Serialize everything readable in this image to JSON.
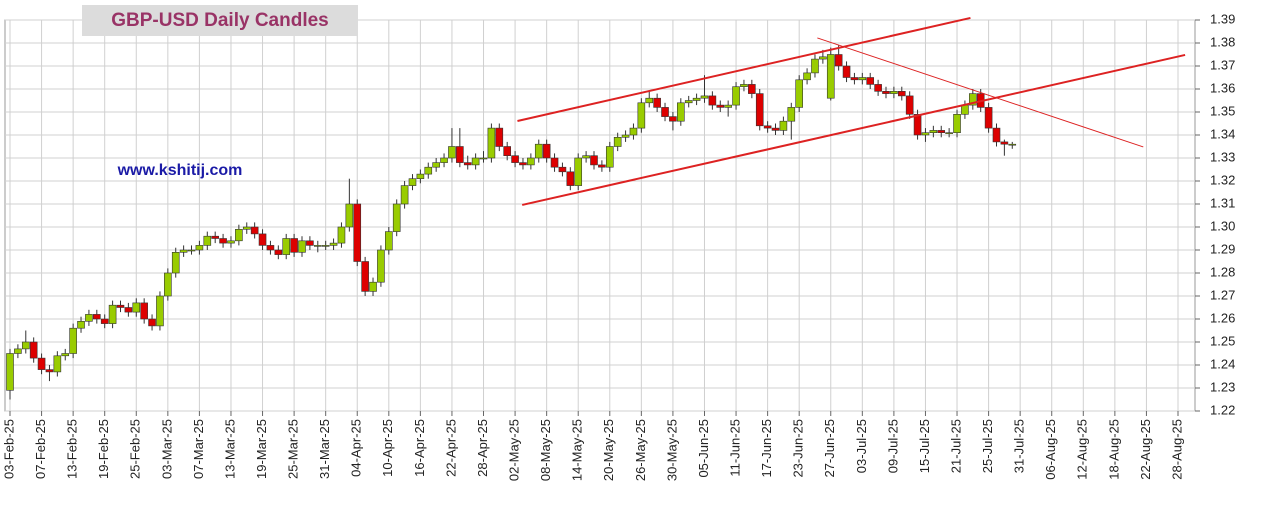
{
  "chart_data": {
    "type": "candlestick",
    "title": "GBP-USD Daily Candles",
    "watermark": "www.kshitij.com",
    "up_color": "#99cc00",
    "down_color": "#dd0000",
    "grid": true,
    "ylim": [
      1.22,
      1.39
    ],
    "yticks": [
      1.22,
      1.23,
      1.24,
      1.25,
      1.26,
      1.27,
      1.28,
      1.29,
      {
        "value": 1.3,
        "label": "1.30"
      },
      1.31,
      1.32,
      1.33,
      1.34,
      1.35,
      1.36,
      1.37,
      1.38,
      1.39
    ],
    "categories": [
      "03-Feb-25",
      null,
      null,
      null,
      "07-Feb-25",
      null,
      null,
      null,
      "13-Feb-25",
      null,
      null,
      null,
      "19-Feb-25",
      null,
      null,
      null,
      "25-Feb-25",
      null,
      null,
      null,
      "03-Mar-25",
      null,
      null,
      null,
      "07-Mar-25",
      null,
      null,
      null,
      "13-Mar-25",
      null,
      null,
      null,
      "19-Mar-25",
      null,
      null,
      null,
      "25-Mar-25",
      null,
      null,
      null,
      "31-Mar-25",
      null,
      null,
      null,
      "04-Apr-25",
      null,
      null,
      null,
      "10-Apr-25",
      null,
      null,
      null,
      "16-Apr-25",
      null,
      null,
      null,
      "22-Apr-25",
      null,
      null,
      null,
      "28-Apr-25",
      null,
      null,
      null,
      "02-May-25",
      null,
      null,
      null,
      "08-May-25",
      null,
      null,
      null,
      "14-May-25",
      null,
      null,
      null,
      "20-May-25",
      null,
      null,
      null,
      "26-May-25",
      null,
      null,
      null,
      "30-May-25",
      null,
      null,
      null,
      "05-Jun-25",
      null,
      null,
      null,
      "11-Jun-25",
      null,
      null,
      null,
      "17-Jun-25",
      null,
      null,
      null,
      "23-Jun-25",
      null,
      null,
      null,
      "27-Jun-25",
      null,
      null,
      null,
      "03-Jul-25",
      null,
      null,
      null,
      "09-Jul-25",
      null,
      null,
      null,
      "15-Jul-25",
      null,
      null,
      null,
      "21-Jul-25",
      null,
      null,
      null,
      "25-Jul-25",
      null,
      null,
      null,
      "31-Jul-25",
      null,
      null,
      null,
      "06-Aug-25",
      null,
      null,
      null,
      "12-Aug-25",
      null,
      null,
      null,
      "18-Aug-25",
      null,
      null,
      null,
      "22-Aug-25",
      null,
      null,
      null,
      "28-Aug-25"
    ],
    "ohlc": [
      [
        1.229,
        1.247,
        1.225,
        1.245
      ],
      [
        1.245,
        1.249,
        1.243,
        1.247
      ],
      [
        1.247,
        1.255,
        1.245,
        1.25
      ],
      [
        1.25,
        1.252,
        1.241,
        1.243
      ],
      [
        1.243,
        1.245,
        1.236,
        1.238
      ],
      [
        1.238,
        1.24,
        1.233,
        1.237
      ],
      [
        1.237,
        1.246,
        1.235,
        1.244
      ],
      [
        1.244,
        1.247,
        1.242,
        1.245
      ],
      [
        1.245,
        1.258,
        1.243,
        1.256
      ],
      [
        1.256,
        1.261,
        1.254,
        1.259
      ],
      [
        1.259,
        1.264,
        1.257,
        1.262
      ],
      [
        1.262,
        1.264,
        1.258,
        1.26
      ],
      [
        1.26,
        1.262,
        1.256,
        1.258
      ],
      [
        1.258,
        1.268,
        1.256,
        1.266
      ],
      [
        1.266,
        1.268,
        1.263,
        1.265
      ],
      [
        1.265,
        1.267,
        1.261,
        1.263
      ],
      [
        1.263,
        1.269,
        1.261,
        1.267
      ],
      [
        1.267,
        1.269,
        1.258,
        1.26
      ],
      [
        1.26,
        1.262,
        1.255,
        1.257
      ],
      [
        1.257,
        1.272,
        1.255,
        1.27
      ],
      [
        1.27,
        1.282,
        1.268,
        1.28
      ],
      [
        1.28,
        1.291,
        1.278,
        1.289
      ],
      [
        1.289,
        1.292,
        1.287,
        1.29
      ],
      [
        1.29,
        1.292,
        1.288,
        1.29
      ],
      [
        1.29,
        1.294,
        1.288,
        1.292
      ],
      [
        1.292,
        1.298,
        1.29,
        1.296
      ],
      [
        1.296,
        1.298,
        1.293,
        1.295
      ],
      [
        1.295,
        1.297,
        1.291,
        1.293
      ],
      [
        1.293,
        1.296,
        1.291,
        1.294
      ],
      [
        1.294,
        1.301,
        1.292,
        1.299
      ],
      [
        1.299,
        1.302,
        1.297,
        1.3
      ],
      [
        1.3,
        1.302,
        1.295,
        1.297
      ],
      [
        1.297,
        1.299,
        1.29,
        1.292
      ],
      [
        1.292,
        1.294,
        1.288,
        1.29
      ],
      [
        1.29,
        1.292,
        1.286,
        1.288
      ],
      [
        1.288,
        1.297,
        1.286,
        1.295
      ],
      [
        1.295,
        1.297,
        1.287,
        1.289
      ],
      [
        1.289,
        1.296,
        1.287,
        1.294
      ],
      [
        1.294,
        1.296,
        1.29,
        1.292
      ],
      [
        1.292,
        1.294,
        1.289,
        1.292
      ],
      [
        1.292,
        1.294,
        1.29,
        1.292
      ],
      [
        1.292,
        1.295,
        1.29,
        1.293
      ],
      [
        1.293,
        1.302,
        1.291,
        1.3
      ],
      [
        1.3,
        1.321,
        1.298,
        1.31
      ],
      [
        1.31,
        1.312,
        1.283,
        1.285
      ],
      [
        1.285,
        1.287,
        1.27,
        1.272
      ],
      [
        1.272,
        1.278,
        1.27,
        1.276
      ],
      [
        1.276,
        1.292,
        1.274,
        1.29
      ],
      [
        1.29,
        1.3,
        1.288,
        1.298
      ],
      [
        1.298,
        1.312,
        1.296,
        1.31
      ],
      [
        1.31,
        1.32,
        1.308,
        1.318
      ],
      [
        1.318,
        1.323,
        1.316,
        1.321
      ],
      [
        1.321,
        1.325,
        1.319,
        1.323
      ],
      [
        1.323,
        1.328,
        1.321,
        1.326
      ],
      [
        1.326,
        1.33,
        1.324,
        1.328
      ],
      [
        1.328,
        1.332,
        1.326,
        1.33
      ],
      [
        1.33,
        1.343,
        1.328,
        1.335
      ],
      [
        1.335,
        1.343,
        1.326,
        1.328
      ],
      [
        1.328,
        1.331,
        1.325,
        1.327
      ],
      [
        1.327,
        1.332,
        1.325,
        1.33
      ],
      [
        1.33,
        1.333,
        1.328,
        1.33
      ],
      [
        1.33,
        1.345,
        1.328,
        1.343
      ],
      [
        1.343,
        1.345,
        1.333,
        1.335
      ],
      [
        1.335,
        1.337,
        1.329,
        1.331
      ],
      [
        1.331,
        1.333,
        1.326,
        1.328
      ],
      [
        1.328,
        1.33,
        1.325,
        1.327
      ],
      [
        1.327,
        1.332,
        1.325,
        1.33
      ],
      [
        1.33,
        1.338,
        1.328,
        1.336
      ],
      [
        1.336,
        1.338,
        1.328,
        1.33
      ],
      [
        1.33,
        1.332,
        1.324,
        1.326
      ],
      [
        1.326,
        1.328,
        1.322,
        1.324
      ],
      [
        1.324,
        1.326,
        1.316,
        1.318
      ],
      [
        1.318,
        1.332,
        1.316,
        1.33
      ],
      [
        1.33,
        1.333,
        1.328,
        1.331
      ],
      [
        1.331,
        1.333,
        1.325,
        1.327
      ],
      [
        1.327,
        1.329,
        1.324,
        1.326
      ],
      [
        1.326,
        1.337,
        1.324,
        1.335
      ],
      [
        1.335,
        1.341,
        1.333,
        1.339
      ],
      [
        1.339,
        1.342,
        1.337,
        1.34
      ],
      [
        1.34,
        1.345,
        1.338,
        1.343
      ],
      [
        1.343,
        1.356,
        1.341,
        1.354
      ],
      [
        1.354,
        1.359,
        1.352,
        1.356
      ],
      [
        1.356,
        1.358,
        1.35,
        1.352
      ],
      [
        1.352,
        1.354,
        1.346,
        1.348
      ],
      [
        1.348,
        1.35,
        1.342,
        1.346
      ],
      [
        1.346,
        1.356,
        1.344,
        1.354
      ],
      [
        1.354,
        1.357,
        1.352,
        1.355
      ],
      [
        1.355,
        1.358,
        1.353,
        1.356
      ],
      [
        1.356,
        1.366,
        1.354,
        1.357
      ],
      [
        1.357,
        1.359,
        1.351,
        1.353
      ],
      [
        1.353,
        1.355,
        1.35,
        1.352
      ],
      [
        1.352,
        1.355,
        1.348,
        1.353
      ],
      [
        1.353,
        1.363,
        1.351,
        1.361
      ],
      [
        1.361,
        1.364,
        1.359,
        1.362
      ],
      [
        1.362,
        1.364,
        1.356,
        1.358
      ],
      [
        1.358,
        1.36,
        1.342,
        1.344
      ],
      [
        1.344,
        1.346,
        1.341,
        1.343
      ],
      [
        1.343,
        1.345,
        1.34,
        1.342
      ],
      [
        1.342,
        1.348,
        1.34,
        1.346
      ],
      [
        1.346,
        1.354,
        1.338,
        1.352
      ],
      [
        1.352,
        1.366,
        1.35,
        1.364
      ],
      [
        1.364,
        1.369,
        1.362,
        1.367
      ],
      [
        1.367,
        1.375,
        1.365,
        1.373
      ],
      [
        1.373,
        1.377,
        1.371,
        1.374
      ],
      [
        1.356,
        1.378,
        1.355,
        1.375
      ],
      [
        1.375,
        1.379,
        1.368,
        1.37
      ],
      [
        1.37,
        1.372,
        1.363,
        1.365
      ],
      [
        1.365,
        1.367,
        1.362,
        1.364
      ],
      [
        1.364,
        1.367,
        1.362,
        1.365
      ],
      [
        1.365,
        1.367,
        1.36,
        1.362
      ],
      [
        1.362,
        1.364,
        1.357,
        1.359
      ],
      [
        1.359,
        1.361,
        1.356,
        1.358
      ],
      [
        1.358,
        1.361,
        1.356,
        1.359
      ],
      [
        1.359,
        1.361,
        1.355,
        1.357
      ],
      [
        1.357,
        1.359,
        1.347,
        1.349
      ],
      [
        1.349,
        1.351,
        1.338,
        1.34
      ],
      [
        1.34,
        1.343,
        1.337,
        1.341
      ],
      [
        1.341,
        1.344,
        1.339,
        1.342
      ],
      [
        1.342,
        1.344,
        1.339,
        1.341
      ],
      [
        1.341,
        1.343,
        1.339,
        1.341
      ],
      [
        1.341,
        1.351,
        1.339,
        1.349
      ],
      [
        1.349,
        1.355,
        1.347,
        1.353
      ],
      [
        1.353,
        1.36,
        1.351,
        1.358
      ],
      [
        1.358,
        1.36,
        1.35,
        1.352
      ],
      [
        1.352,
        1.354,
        1.341,
        1.343
      ],
      [
        1.343,
        1.345,
        1.335,
        1.337
      ],
      [
        1.337,
        1.338,
        1.331,
        1.336
      ],
      [
        1.336,
        1.337,
        1.334,
        1.336
      ],
      null,
      null,
      null,
      null,
      null,
      null,
      null,
      null,
      null,
      null,
      null,
      null,
      null,
      null,
      null,
      null,
      null,
      null,
      null,
      null,
      null
    ],
    "trend_lines": [
      {
        "color": "#dd2222",
        "width": 2,
        "x": [
          64.3,
          121.7
        ],
        "y": [
          1.3461,
          1.3909
        ]
      },
      {
        "color": "#dd2222",
        "width": 2,
        "x": [
          64.9,
          148.9
        ],
        "y": [
          1.3096,
          1.3748
        ]
      },
      {
        "color": "#dd2222",
        "width": 1,
        "x": [
          102.3,
          143.6
        ],
        "y": [
          1.3822,
          1.3348
        ]
      }
    ]
  }
}
